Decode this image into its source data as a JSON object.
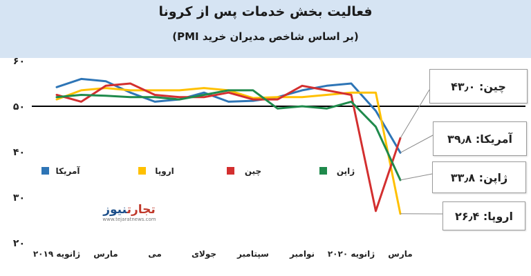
{
  "header": {
    "title": "فعالیت بخش خدمات پس از کرونا",
    "subtitle": "(بر اساس شاخص مدیران خرید PMI)"
  },
  "colors": {
    "header_bg": "#d6e4f3",
    "america": "#2e75b6",
    "europe": "#ffc000",
    "china": "#d32f2f",
    "japan": "#1f8a4c"
  },
  "logo": {
    "word1": "تجارت",
    "word2": "نیوز",
    "url": "www.tejaratnews.com"
  },
  "callouts": {
    "china": "چین: ۴۳٫۰",
    "america": "آمریکا: ۳۹٫۸",
    "japan": "ژاپن: ۳۳٫۸",
    "europe": "اروپا: ۲۶٫۴"
  },
  "chart_data": {
    "type": "line",
    "title": "فعالیت بخش خدمات پس از کرونا",
    "subtitle": "(بر اساس شاخص مدیران خرید PMI)",
    "ylim": [
      20,
      60
    ],
    "y_ticks": [
      "۶۰",
      "۵۰",
      "۴۰",
      "۳۰",
      "۲۰"
    ],
    "y_tick_values": [
      60,
      50,
      40,
      30,
      20
    ],
    "reference_line": 50,
    "x_labels": [
      "ژانویه ۲۰۱۹",
      "مارس",
      "می",
      "جولای",
      "سپتامبر",
      "نوامبر",
      "ژانویه ۲۰۲۰",
      "مارس"
    ],
    "x_label_indices": [
      0,
      2,
      4,
      6,
      8,
      10,
      12,
      14
    ],
    "legend_position": "inside-middle",
    "series": [
      {
        "name": "آمریکا",
        "key": "america",
        "color": "#2e75b6",
        "values": [
          54.2,
          56.0,
          55.5,
          53.0,
          51.0,
          51.5,
          53.0,
          51.0,
          51.2,
          52.0,
          53.5,
          54.5,
          55.0,
          49.0,
          39.8
        ]
      },
      {
        "name": "اروپا",
        "key": "europe",
        "color": "#ffc000",
        "values": [
          51.5,
          53.5,
          54.0,
          53.5,
          53.5,
          53.5,
          54.0,
          53.5,
          51.8,
          52.0,
          52.0,
          52.5,
          53.0,
          53.0,
          26.4
        ]
      },
      {
        "name": "چین",
        "key": "china",
        "color": "#d32f2f",
        "values": [
          52.5,
          51.0,
          54.5,
          55.0,
          52.5,
          52.0,
          52.0,
          53.0,
          51.5,
          51.5,
          54.5,
          53.5,
          52.5,
          27.0,
          43.0
        ]
      },
      {
        "name": "ژاپن",
        "key": "japan",
        "color": "#1f8a4c",
        "values": [
          52.0,
          52.5,
          52.3,
          52.0,
          52.0,
          51.5,
          52.5,
          53.5,
          53.5,
          49.5,
          50.0,
          49.5,
          51.0,
          45.5,
          33.8
        ]
      }
    ]
  }
}
